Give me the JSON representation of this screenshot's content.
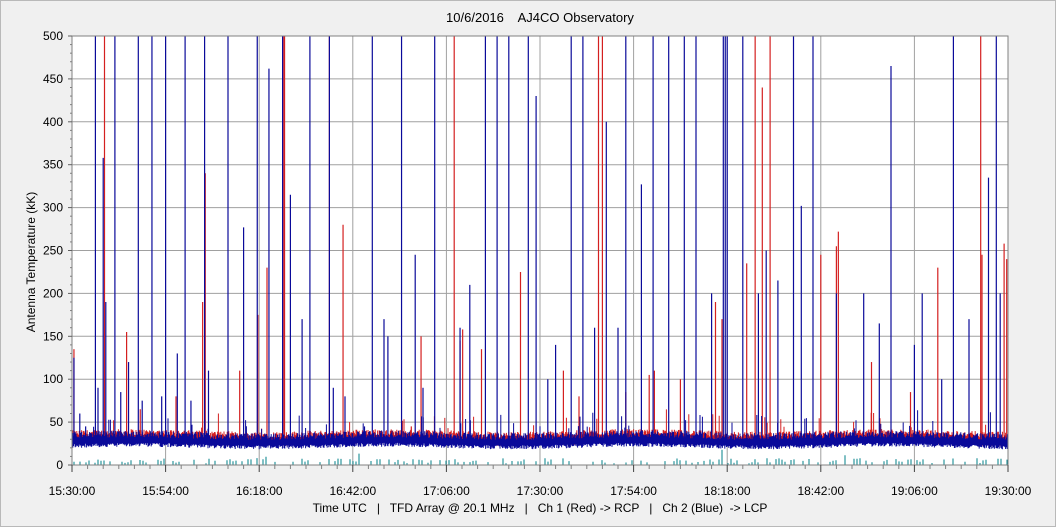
{
  "chart_data": {
    "type": "line",
    "title": "10/6/2016    AJ4CO Observatory",
    "ylabel": "Antenna Temperature (kK)",
    "xlabel": "Time UTC   |   TFD Array @ 20.1 MHz   |   Ch 1 (Red) -> RCP   |   Ch 2 (Blue)  -> LCP",
    "ylim": [
      0,
      500
    ],
    "yticks": [
      0,
      50,
      100,
      150,
      200,
      250,
      300,
      350,
      400,
      450,
      500
    ],
    "xlim": [
      "15:30:00",
      "19:30:00"
    ],
    "xtick_labels": [
      "15:30:00",
      "15:54:00",
      "16:18:00",
      "16:42:00",
      "17:06:00",
      "17:30:00",
      "17:54:00",
      "18:18:00",
      "18:42:00",
      "19:06:00",
      "19:30:00"
    ],
    "grid": true,
    "colors": {
      "ch1": "#d42020",
      "ch2": "#0a0a9a",
      "difference": "#00808a",
      "grid": "#a0a0a0",
      "plot_bg": "#ffffff"
    },
    "series": [
      {
        "channel": "Ch 1 (Red)",
        "baseline_kK": 30,
        "spikes": [
          [
            "15:30:30",
            135
          ],
          [
            "15:38:20",
            500
          ],
          [
            "15:44:00",
            155
          ],
          [
            "15:47:30",
            65
          ],
          [
            "15:56:40",
            80
          ],
          [
            "16:03:30",
            190
          ],
          [
            "16:04:10",
            340
          ],
          [
            "16:13:00",
            110
          ],
          [
            "16:17:40",
            175
          ],
          [
            "16:20:00",
            230
          ],
          [
            "16:24:10",
            500
          ],
          [
            "16:24:30",
            500
          ],
          [
            "16:36:00",
            500
          ],
          [
            "16:39:30",
            280
          ],
          [
            "16:57:00",
            45
          ],
          [
            "16:59:30",
            150
          ],
          [
            "17:08:00",
            500
          ],
          [
            "17:09:30",
            145
          ],
          [
            "17:10:10",
            158
          ],
          [
            "17:15:00",
            135
          ],
          [
            "17:25:00",
            225
          ],
          [
            "17:36:00",
            110
          ],
          [
            "17:40:00",
            80
          ],
          [
            "17:45:00",
            500
          ],
          [
            "17:46:00",
            500
          ],
          [
            "17:52:00",
            85
          ],
          [
            "17:58:00",
            105
          ],
          [
            "17:59:20",
            110
          ],
          [
            "18:06:00",
            100
          ],
          [
            "18:15:00",
            190
          ],
          [
            "18:16:40",
            170
          ],
          [
            "18:23:00",
            235
          ],
          [
            "18:25:10",
            500
          ],
          [
            "18:27:00",
            440
          ],
          [
            "18:29:00",
            500
          ],
          [
            "18:42:00",
            245
          ],
          [
            "18:46:00",
            255
          ],
          [
            "18:46:30",
            272
          ],
          [
            "18:55:00",
            120
          ],
          [
            "19:05:00",
            85
          ],
          [
            "19:12:00",
            230
          ],
          [
            "19:23:00",
            500
          ],
          [
            "19:23:20",
            245
          ],
          [
            "19:29:00",
            258
          ],
          [
            "19:29:40",
            240
          ]
        ]
      },
      {
        "channel": "Ch 2 (Blue)",
        "baseline_kK": 27,
        "spikes": [
          [
            "15:30:30",
            125
          ],
          [
            "15:32:00",
            60
          ],
          [
            "15:33:30",
            45
          ],
          [
            "15:36:00",
            500
          ],
          [
            "15:36:40",
            90
          ],
          [
            "15:38:00",
            358
          ],
          [
            "15:38:40",
            190
          ],
          [
            "15:41:00",
            500
          ],
          [
            "15:42:30",
            85
          ],
          [
            "15:44:30",
            120
          ],
          [
            "15:47:00",
            500
          ],
          [
            "15:48:00",
            75
          ],
          [
            "15:50:30",
            500
          ],
          [
            "15:53:00",
            80
          ],
          [
            "15:54:00",
            500
          ],
          [
            "15:57:00",
            130
          ],
          [
            "15:59:00",
            500
          ],
          [
            "16:00:30",
            75
          ],
          [
            "16:04:00",
            500
          ],
          [
            "16:05:00",
            110
          ],
          [
            "16:10:00",
            500
          ],
          [
            "16:14:00",
            277
          ],
          [
            "16:17:30",
            500
          ],
          [
            "16:20:30",
            462
          ],
          [
            "16:24:00",
            500
          ],
          [
            "16:26:00",
            315
          ],
          [
            "16:29:00",
            170
          ],
          [
            "16:31:00",
            500
          ],
          [
            "16:36:00",
            500
          ],
          [
            "16:37:00",
            90
          ],
          [
            "16:40:00",
            80
          ],
          [
            "16:45:00",
            45
          ],
          [
            "16:47:00",
            500
          ],
          [
            "16:50:00",
            170
          ],
          [
            "16:51:00",
            150
          ],
          [
            "16:54:30",
            500
          ],
          [
            "16:58:00",
            245
          ],
          [
            "17:00:00",
            90
          ],
          [
            "17:03:00",
            500
          ],
          [
            "17:09:30",
            160
          ],
          [
            "17:12:00",
            210
          ],
          [
            "17:16:00",
            500
          ],
          [
            "17:19:00",
            500
          ],
          [
            "17:22:00",
            500
          ],
          [
            "17:27:00",
            500
          ],
          [
            "17:29:00",
            430
          ],
          [
            "17:32:00",
            100
          ],
          [
            "17:34:00",
            140
          ],
          [
            "17:38:00",
            500
          ],
          [
            "17:41:00",
            500
          ],
          [
            "17:44:00",
            160
          ],
          [
            "17:47:00",
            400
          ],
          [
            "17:50:00",
            160
          ],
          [
            "17:52:00",
            500
          ],
          [
            "17:56:00",
            327
          ],
          [
            "17:59:00",
            500
          ],
          [
            "18:03:00",
            500
          ],
          [
            "18:07:00",
            500
          ],
          [
            "18:10:00",
            500
          ],
          [
            "18:14:00",
            200
          ],
          [
            "18:17:00",
            500
          ],
          [
            "18:17:30",
            500
          ],
          [
            "18:18:00",
            500
          ],
          [
            "18:22:00",
            500
          ],
          [
            "18:26:00",
            200
          ],
          [
            "18:28:00",
            250
          ],
          [
            "18:31:00",
            215
          ],
          [
            "18:35:00",
            500
          ],
          [
            "18:37:00",
            302
          ],
          [
            "18:40:00",
            500
          ],
          [
            "18:46:00",
            200
          ],
          [
            "18:53:00",
            200
          ],
          [
            "18:57:00",
            165
          ],
          [
            "19:00:00",
            465
          ],
          [
            "19:06:00",
            140
          ],
          [
            "19:08:00",
            200
          ],
          [
            "19:13:00",
            100
          ],
          [
            "19:16:00",
            500
          ],
          [
            "19:20:00",
            170
          ],
          [
            "19:25:00",
            335
          ],
          [
            "19:27:00",
            500
          ],
          [
            "19:28:00",
            200
          ]
        ]
      }
    ]
  }
}
